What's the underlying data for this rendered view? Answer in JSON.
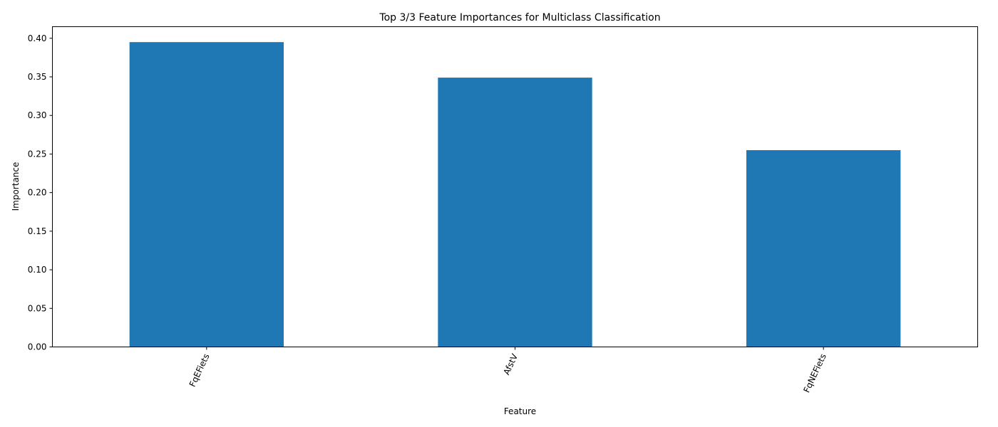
{
  "chart_data": {
    "type": "bar",
    "title": "Top 3/3 Feature Importances for Multiclass Classification",
    "xlabel": "Feature",
    "ylabel": "Importance",
    "categories": [
      "FqEFiets",
      "AfstV",
      "FqNEFiets"
    ],
    "values": [
      0.395,
      0.349,
      0.255
    ],
    "ylim": [
      0,
      0.415
    ],
    "yticks": [
      "0.00",
      "0.05",
      "0.10",
      "0.15",
      "0.20",
      "0.25",
      "0.30",
      "0.35",
      "0.40"
    ],
    "x_tick_rotation_deg": 65,
    "grid": false,
    "legend": "none",
    "bar_color": "#1f77b4"
  }
}
